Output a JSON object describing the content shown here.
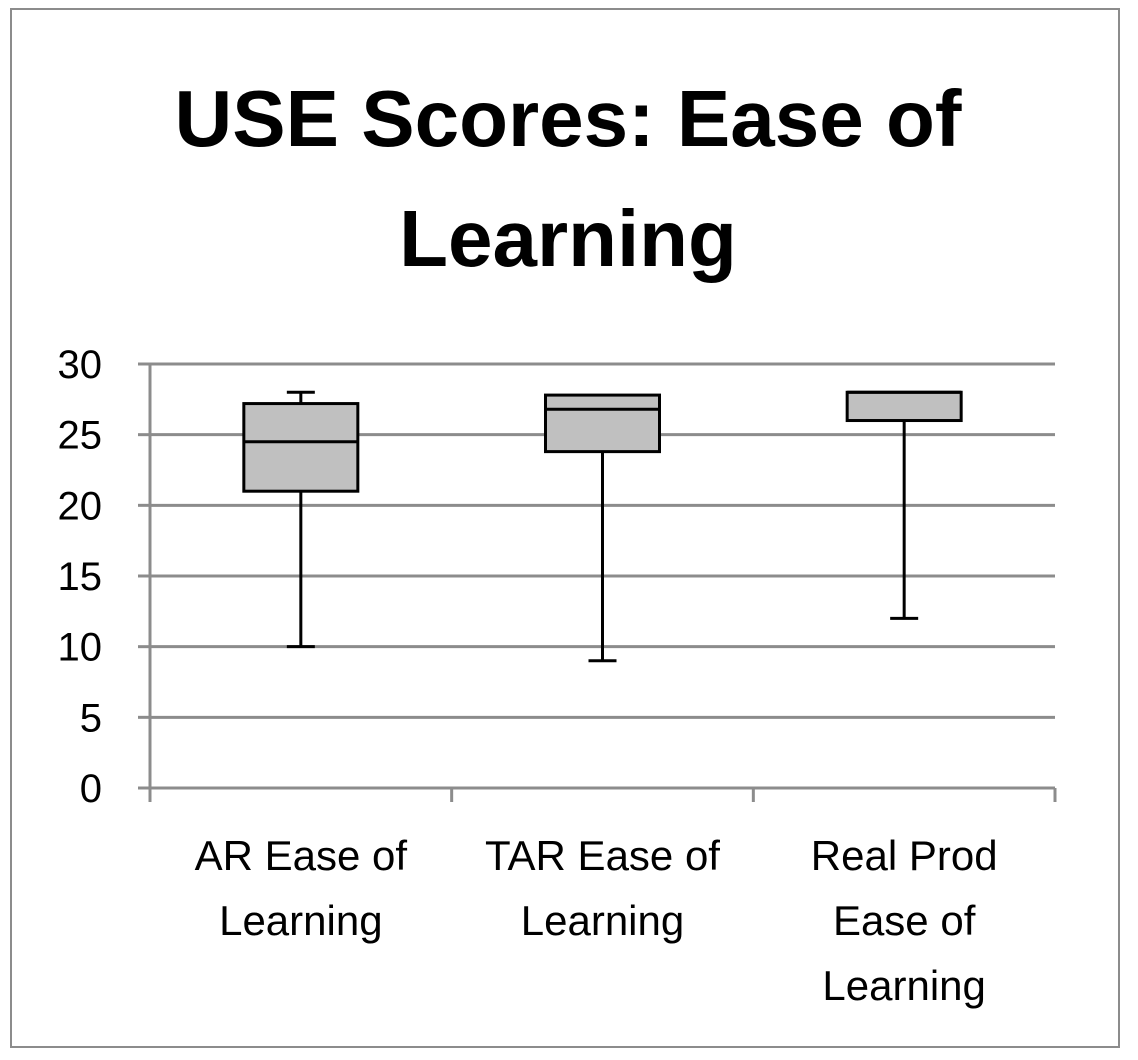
{
  "chart_data": {
    "type": "boxplot",
    "title_lines": [
      "USE Scores: Ease of",
      "Learning"
    ],
    "xlabel": "",
    "ylabel": "",
    "ylim": [
      0,
      30
    ],
    "yticks": [
      "0",
      "5",
      "10",
      "15",
      "20",
      "25",
      "30"
    ],
    "grid": true,
    "legend": "none",
    "categories": [
      {
        "label_lines": [
          "AR Ease of",
          "Learning"
        ],
        "min": 10,
        "q1": 21,
        "median": 24.5,
        "q3": 27.2,
        "max": 28
      },
      {
        "label_lines": [
          "TAR Ease of",
          "Learning"
        ],
        "min": 9,
        "q1": 23.8,
        "median": 26.8,
        "q3": 27.8,
        "max": 27.8
      },
      {
        "label_lines": [
          "Real Prod",
          "Ease of",
          "Learning"
        ],
        "min": 12,
        "q1": 26,
        "median": 28,
        "q3": 28,
        "max": 28
      }
    ],
    "colors": {
      "box_fill": "#c0c0c0",
      "gridline": "#8c8c8c",
      "stroke": "#000000"
    }
  }
}
